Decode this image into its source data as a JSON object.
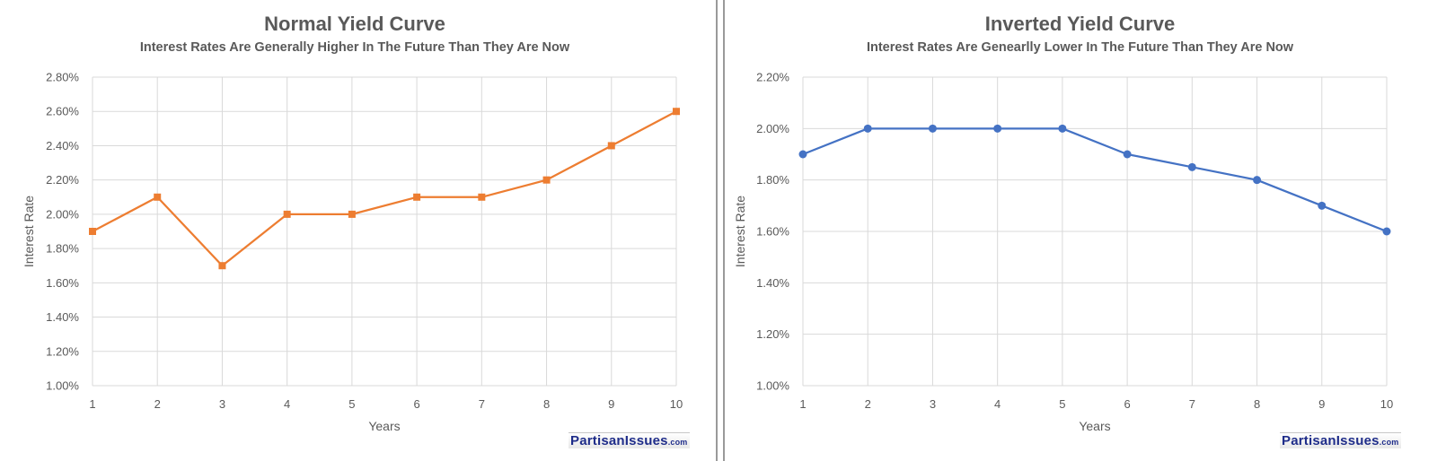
{
  "chart_data": [
    {
      "type": "line",
      "title": "Normal Yield Curve",
      "subtitle": "Interest Rates Are Generally Higher In The Future Than They Are Now",
      "xlabel": "Years",
      "ylabel": "Interest Rate",
      "x": [
        1,
        2,
        3,
        4,
        5,
        6,
        7,
        8,
        9,
        10
      ],
      "ylim": [
        1.0,
        2.8
      ],
      "yticks": [
        "1.00%",
        "1.20%",
        "1.40%",
        "1.60%",
        "1.80%",
        "2.00%",
        "2.20%",
        "2.40%",
        "2.60%",
        "2.80%"
      ],
      "series": [
        {
          "values": [
            1.9,
            2.1,
            1.7,
            2.0,
            2.0,
            2.1,
            2.1,
            2.2,
            2.4,
            2.6
          ],
          "color": "#ed7d31",
          "marker": "square"
        }
      ],
      "grid": true,
      "legend": "none"
    },
    {
      "type": "line",
      "title": "Inverted Yield Curve",
      "subtitle": "Interest Rates Are Genearlly Lower In The Future Than They Are Now",
      "xlabel": "Years",
      "ylabel": "Interest Rate",
      "x": [
        1,
        2,
        3,
        4,
        5,
        6,
        7,
        8,
        9,
        10
      ],
      "ylim": [
        1.0,
        2.2
      ],
      "yticks": [
        "1.00%",
        "1.20%",
        "1.40%",
        "1.60%",
        "1.80%",
        "2.00%",
        "2.20%"
      ],
      "series": [
        {
          "values": [
            1.9,
            2.0,
            2.0,
            2.0,
            2.0,
            1.9,
            1.85,
            1.8,
            1.7,
            1.6
          ],
          "color": "#4472c4",
          "marker": "circle"
        }
      ],
      "grid": true,
      "legend": "none"
    }
  ],
  "watermark": {
    "text": "PartisanIssues",
    "suffix": ".com"
  }
}
